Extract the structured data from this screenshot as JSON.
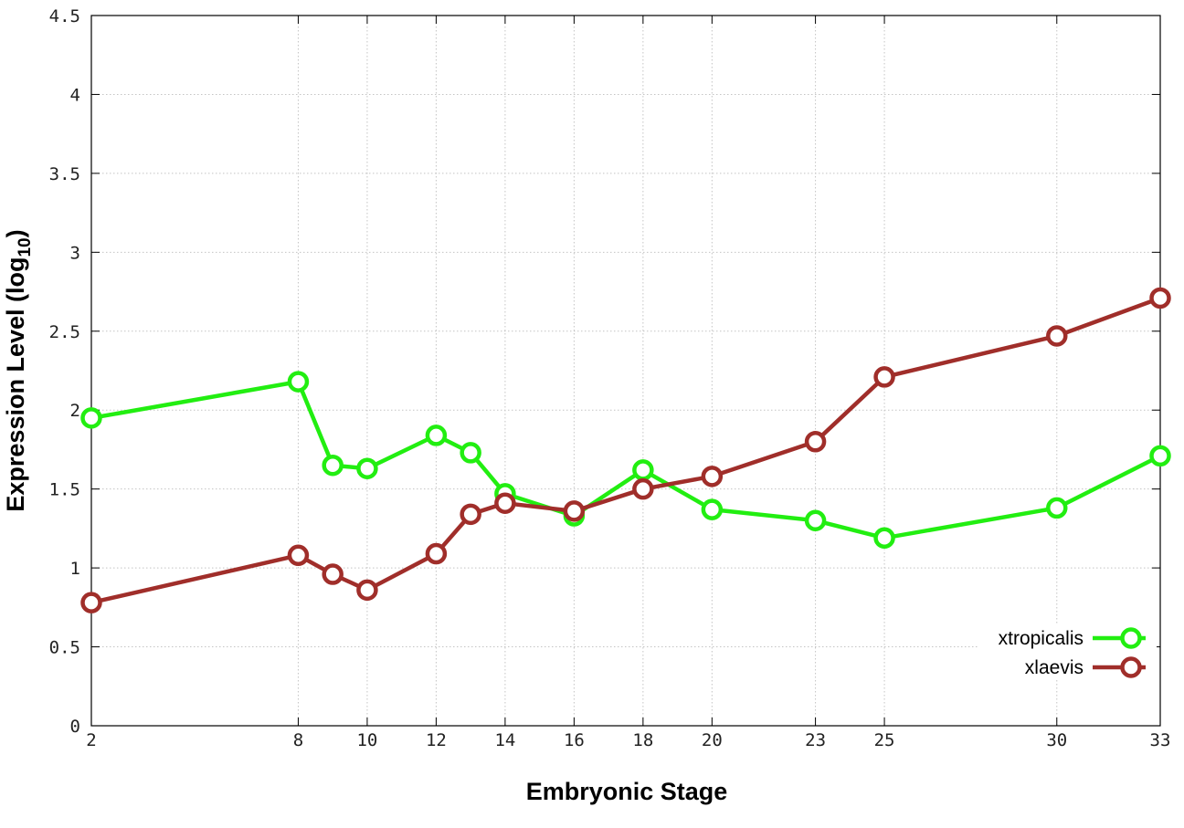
{
  "chart_data": {
    "type": "line",
    "title": "",
    "xlabel": "Embryonic Stage",
    "ylabel": "Expression Level (log",
    "ylabel_subscript": "10",
    "ylabel_close": ")",
    "x_ticks": [
      2,
      8,
      10,
      12,
      14,
      16,
      18,
      20,
      23,
      25,
      30,
      33
    ],
    "y_ticks": [
      "0",
      "0.5",
      "1",
      "1.5",
      "2",
      "2.5",
      "3",
      "3.5",
      "4",
      "4.5"
    ],
    "xlim": [
      2,
      33
    ],
    "ylim": [
      0,
      4.5
    ],
    "grid": true,
    "legend_position": "bottom-right",
    "x": [
      2,
      8,
      9,
      10,
      12,
      13,
      14,
      16,
      18,
      20,
      23,
      25,
      30,
      33
    ],
    "series": [
      {
        "name": "xtropicalis",
        "color": "#22ee11",
        "values": [
          1.95,
          2.18,
          1.65,
          1.63,
          1.84,
          1.73,
          1.47,
          1.33,
          1.62,
          1.37,
          1.3,
          1.19,
          1.38,
          1.71
        ]
      },
      {
        "name": "xlaevis",
        "color": "#a02e2a",
        "values": [
          0.78,
          1.08,
          0.96,
          0.86,
          1.09,
          1.34,
          1.41,
          1.36,
          1.5,
          1.58,
          1.8,
          2.21,
          2.47,
          2.71
        ]
      }
    ]
  }
}
